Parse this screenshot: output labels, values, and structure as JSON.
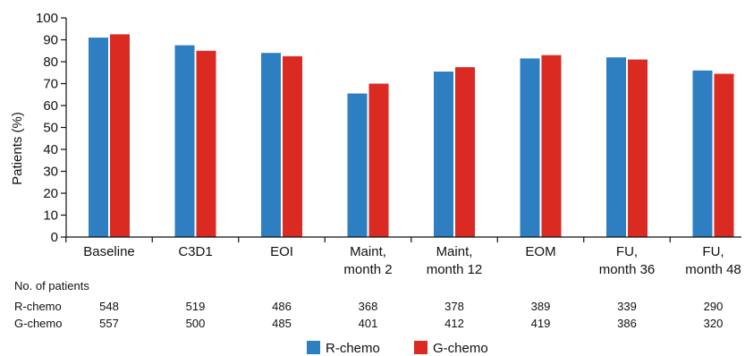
{
  "chart_data": {
    "type": "bar",
    "ylabel": "Patients (%)",
    "ylim": [
      0,
      100
    ],
    "yticks": [
      0,
      10,
      20,
      30,
      40,
      50,
      60,
      70,
      80,
      90,
      100
    ],
    "categories": [
      [
        "Baseline"
      ],
      [
        "C3D1"
      ],
      [
        "EOI"
      ],
      [
        "Maint,",
        "month 2"
      ],
      [
        "Maint,",
        "month 12"
      ],
      [
        "EOM"
      ],
      [
        "FU,",
        "month 36"
      ],
      [
        "FU,",
        "month 48"
      ]
    ],
    "series": [
      {
        "name": "R-chemo",
        "color": "#2e7fc2",
        "values": [
          91,
          87.5,
          84,
          65.5,
          75.5,
          81.5,
          82,
          76
        ]
      },
      {
        "name": "G-chemo",
        "color": "#da2a22",
        "values": [
          92.5,
          85,
          82.5,
          70,
          77.5,
          83,
          81,
          74.5
        ]
      }
    ],
    "legend": {
      "placement": "bottom-center"
    },
    "grid": false
  },
  "patients_table": {
    "title": "No. of patients",
    "rows": [
      {
        "label": "R-chemo",
        "values": [
          "548",
          "519",
          "486",
          "368",
          "378",
          "389",
          "339",
          "290"
        ]
      },
      {
        "label": "G-chemo",
        "values": [
          "557",
          "500",
          "485",
          "401",
          "412",
          "419",
          "386",
          "320"
        ]
      }
    ]
  }
}
